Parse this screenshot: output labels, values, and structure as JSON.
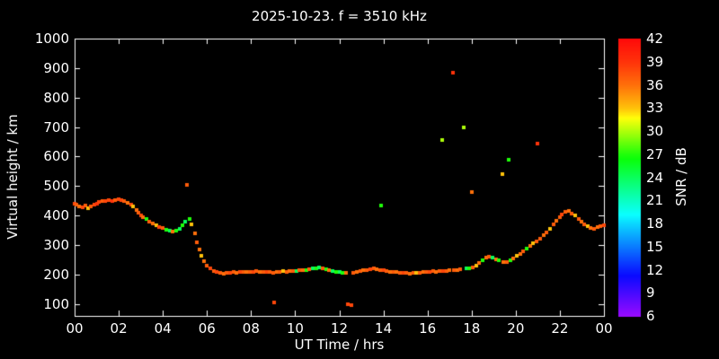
{
  "chart_data": {
    "type": "scatter",
    "title": "2025-10-23. f = 3510 kHz",
    "xlabel": "UT Time / hrs",
    "ylabel": "Virtual height / km",
    "colorbar_label": "SNR / dB",
    "xlim": [
      0,
      24
    ],
    "ylim": [
      60,
      1000
    ],
    "grid": false,
    "colors": {
      "background": "#000000",
      "axis": "#ffffff",
      "text": "#ffffff"
    },
    "xticks": {
      "values": [
        0,
        2,
        4,
        6,
        8,
        10,
        12,
        14,
        16,
        18,
        20,
        22,
        24
      ],
      "labels": [
        "00",
        "02",
        "04",
        "06",
        "08",
        "10",
        "12",
        "14",
        "16",
        "18",
        "20",
        "22",
        "00"
      ]
    },
    "yticks": {
      "values": [
        100,
        200,
        300,
        400,
        500,
        600,
        700,
        800,
        900,
        1000
      ],
      "labels": [
        "100",
        "200",
        "300",
        "400",
        "500",
        "600",
        "700",
        "800",
        "900",
        "1000"
      ]
    },
    "colorbar": {
      "min": 6,
      "max": 42,
      "ticks": [
        6,
        9,
        12,
        15,
        18,
        21,
        24,
        27,
        30,
        33,
        36,
        39,
        42
      ],
      "colormap": "rainbow"
    },
    "series_note": "points are [UT_hours, virtual_height_km, SNR_dB]",
    "points": [
      [
        0.0,
        440,
        38
      ],
      [
        0.1,
        436,
        37
      ],
      [
        0.2,
        430,
        36
      ],
      [
        0.35,
        428,
        38
      ],
      [
        0.5,
        433,
        37
      ],
      [
        0.6,
        426,
        33
      ],
      [
        0.75,
        430,
        37
      ],
      [
        0.9,
        436,
        38
      ],
      [
        1.0,
        441,
        39
      ],
      [
        1.1,
        445,
        38
      ],
      [
        1.25,
        448,
        37
      ],
      [
        1.4,
        450,
        38
      ],
      [
        1.55,
        452,
        38
      ],
      [
        1.7,
        450,
        39
      ],
      [
        1.85,
        452,
        37
      ],
      [
        2.0,
        455,
        38
      ],
      [
        2.1,
        452,
        38
      ],
      [
        2.25,
        450,
        37
      ],
      [
        2.4,
        444,
        36
      ],
      [
        2.55,
        438,
        38
      ],
      [
        2.65,
        430,
        33
      ],
      [
        2.8,
        420,
        36
      ],
      [
        2.9,
        411,
        37
      ],
      [
        3.0,
        401,
        38
      ],
      [
        3.1,
        395,
        36
      ],
      [
        3.25,
        388,
        27
      ],
      [
        3.4,
        380,
        37
      ],
      [
        3.55,
        373,
        36
      ],
      [
        3.7,
        368,
        33
      ],
      [
        3.85,
        362,
        38
      ],
      [
        4.0,
        358,
        37
      ],
      [
        4.15,
        352,
        27
      ],
      [
        4.3,
        348,
        24
      ],
      [
        4.45,
        345,
        36
      ],
      [
        4.6,
        350,
        27
      ],
      [
        4.75,
        356,
        24
      ],
      [
        4.9,
        366,
        27
      ],
      [
        5.0,
        378,
        24
      ],
      [
        5.1,
        505,
        37
      ],
      [
        5.2,
        390,
        27
      ],
      [
        5.3,
        370,
        33
      ],
      [
        5.45,
        340,
        36
      ],
      [
        5.55,
        310,
        37
      ],
      [
        5.65,
        285,
        36
      ],
      [
        5.75,
        263,
        33
      ],
      [
        5.85,
        245,
        36
      ],
      [
        6.0,
        230,
        37
      ],
      [
        6.15,
        220,
        38
      ],
      [
        6.3,
        212,
        37
      ],
      [
        6.45,
        208,
        38
      ],
      [
        6.6,
        205,
        37
      ],
      [
        6.75,
        203,
        36
      ],
      [
        6.9,
        205,
        37
      ],
      [
        7.05,
        206,
        38
      ],
      [
        7.2,
        208,
        37
      ],
      [
        7.35,
        207,
        36
      ],
      [
        7.5,
        208,
        38
      ],
      [
        7.65,
        210,
        37
      ],
      [
        7.8,
        209,
        36
      ],
      [
        7.95,
        208,
        37
      ],
      [
        8.1,
        210,
        38
      ],
      [
        8.25,
        211,
        37
      ],
      [
        8.4,
        210,
        36
      ],
      [
        8.55,
        209,
        37
      ],
      [
        8.7,
        210,
        38
      ],
      [
        8.85,
        208,
        37
      ],
      [
        9.0,
        207,
        37
      ],
      [
        9.05,
        105,
        38
      ],
      [
        9.15,
        208,
        36
      ],
      [
        9.3,
        210,
        37
      ],
      [
        9.45,
        212,
        33
      ],
      [
        9.6,
        210,
        37
      ],
      [
        9.75,
        211,
        36
      ],
      [
        9.9,
        212,
        37
      ],
      [
        10.05,
        213,
        24
      ],
      [
        10.2,
        215,
        37
      ],
      [
        10.35,
        214,
        36
      ],
      [
        10.5,
        216,
        27
      ],
      [
        10.65,
        218,
        37
      ],
      [
        10.8,
        220,
        24
      ],
      [
        10.95,
        222,
        27
      ],
      [
        11.1,
        223,
        24
      ],
      [
        11.25,
        220,
        37
      ],
      [
        11.4,
        218,
        27
      ],
      [
        11.55,
        215,
        36
      ],
      [
        11.7,
        213,
        24
      ],
      [
        11.85,
        210,
        27
      ],
      [
        12.0,
        208,
        24
      ],
      [
        12.15,
        206,
        27
      ],
      [
        12.3,
        205,
        36
      ],
      [
        12.4,
        100,
        38
      ],
      [
        12.55,
        95,
        38
      ],
      [
        12.65,
        207,
        37
      ],
      [
        12.8,
        210,
        36
      ],
      [
        12.95,
        212,
        37
      ],
      [
        13.1,
        214,
        36
      ],
      [
        13.25,
        216,
        37
      ],
      [
        13.4,
        218,
        38
      ],
      [
        13.55,
        220,
        37
      ],
      [
        13.7,
        218,
        36
      ],
      [
        13.85,
        216,
        37
      ],
      [
        13.9,
        435,
        27
      ],
      [
        14.0,
        214,
        38
      ],
      [
        14.15,
        212,
        37
      ],
      [
        14.3,
        210,
        36
      ],
      [
        14.45,
        209,
        37
      ],
      [
        14.6,
        208,
        36
      ],
      [
        14.75,
        207,
        37
      ],
      [
        14.9,
        206,
        38
      ],
      [
        15.05,
        205,
        37
      ],
      [
        15.2,
        204,
        36
      ],
      [
        15.35,
        205,
        37
      ],
      [
        15.5,
        206,
        33
      ],
      [
        15.65,
        207,
        37
      ],
      [
        15.8,
        208,
        36
      ],
      [
        15.95,
        209,
        37
      ],
      [
        16.1,
        210,
        38
      ],
      [
        16.25,
        211,
        37
      ],
      [
        16.4,
        210,
        36
      ],
      [
        16.55,
        211,
        37
      ],
      [
        16.65,
        655,
        30
      ],
      [
        16.7,
        212,
        38
      ],
      [
        16.85,
        213,
        37
      ],
      [
        17.0,
        214,
        36
      ],
      [
        17.15,
        885,
        39
      ],
      [
        17.2,
        215,
        37
      ],
      [
        17.35,
        216,
        36
      ],
      [
        17.5,
        218,
        37
      ],
      [
        17.65,
        700,
        30
      ],
      [
        17.75,
        220,
        24
      ],
      [
        17.9,
        222,
        27
      ],
      [
        18.0,
        480,
        36
      ],
      [
        18.05,
        225,
        37
      ],
      [
        18.2,
        231,
        33
      ],
      [
        18.35,
        240,
        36
      ],
      [
        18.5,
        250,
        27
      ],
      [
        18.65,
        258,
        36
      ],
      [
        18.8,
        262,
        37
      ],
      [
        18.95,
        258,
        24
      ],
      [
        19.1,
        252,
        36
      ],
      [
        19.25,
        248,
        27
      ],
      [
        19.4,
        540,
        33
      ],
      [
        19.45,
        244,
        36
      ],
      [
        19.6,
        243,
        37
      ],
      [
        19.7,
        590,
        27
      ],
      [
        19.75,
        249,
        27
      ],
      [
        19.9,
        256,
        36
      ],
      [
        20.05,
        263,
        33
      ],
      [
        20.2,
        271,
        36
      ],
      [
        20.35,
        279,
        37
      ],
      [
        20.5,
        287,
        27
      ],
      [
        20.65,
        296,
        36
      ],
      [
        20.8,
        306,
        33
      ],
      [
        20.95,
        314,
        37
      ],
      [
        21.0,
        645,
        39
      ],
      [
        21.1,
        322,
        37
      ],
      [
        21.25,
        333,
        36
      ],
      [
        21.4,
        344,
        37
      ],
      [
        21.55,
        356,
        33
      ],
      [
        21.7,
        369,
        37
      ],
      [
        21.85,
        383,
        36
      ],
      [
        22.0,
        396,
        37
      ],
      [
        22.1,
        405,
        38
      ],
      [
        22.25,
        413,
        37
      ],
      [
        22.4,
        415,
        36
      ],
      [
        22.55,
        408,
        37
      ],
      [
        22.7,
        400,
        33
      ],
      [
        22.85,
        390,
        37
      ],
      [
        23.0,
        379,
        36
      ],
      [
        23.1,
        371,
        37
      ],
      [
        23.25,
        363,
        33
      ],
      [
        23.4,
        357,
        36
      ],
      [
        23.55,
        355,
        37
      ],
      [
        23.7,
        360,
        36
      ],
      [
        23.85,
        365,
        37
      ],
      [
        24.0,
        368,
        38
      ]
    ]
  }
}
